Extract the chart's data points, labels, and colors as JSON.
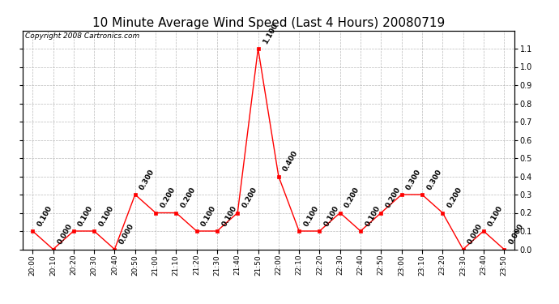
{
  "title": "10 Minute Average Wind Speed (Last 4 Hours) 20080719",
  "copyright": "Copyright 2008 Cartronics.com",
  "x_labels": [
    "20:00",
    "20:10",
    "20:20",
    "20:30",
    "20:40",
    "20:50",
    "21:00",
    "21:10",
    "21:20",
    "21:30",
    "21:40",
    "21:50",
    "22:00",
    "22:10",
    "22:20",
    "22:30",
    "22:40",
    "22:50",
    "23:00",
    "23:10",
    "23:20",
    "23:30",
    "23:40",
    "23:50"
  ],
  "y_values": [
    0.1,
    0.0,
    0.1,
    0.1,
    0.0,
    0.3,
    0.2,
    0.2,
    0.1,
    0.1,
    0.2,
    1.1,
    0.4,
    0.1,
    0.1,
    0.2,
    0.1,
    0.2,
    0.3,
    0.3,
    0.2,
    0.0,
    0.1,
    0.0
  ],
  "line_color": "#ff0000",
  "marker_color": "#ff0000",
  "background_color": "#ffffff",
  "grid_color": "#aaaaaa",
  "title_fontsize": 11,
  "annotation_fontsize": 6.5,
  "copyright_fontsize": 6.5,
  "ylim": [
    0.0,
    1.2
  ],
  "yticks": [
    0.0,
    0.1,
    0.2,
    0.3,
    0.4,
    0.5,
    0.6,
    0.7,
    0.8,
    0.9,
    1.0,
    1.1
  ]
}
